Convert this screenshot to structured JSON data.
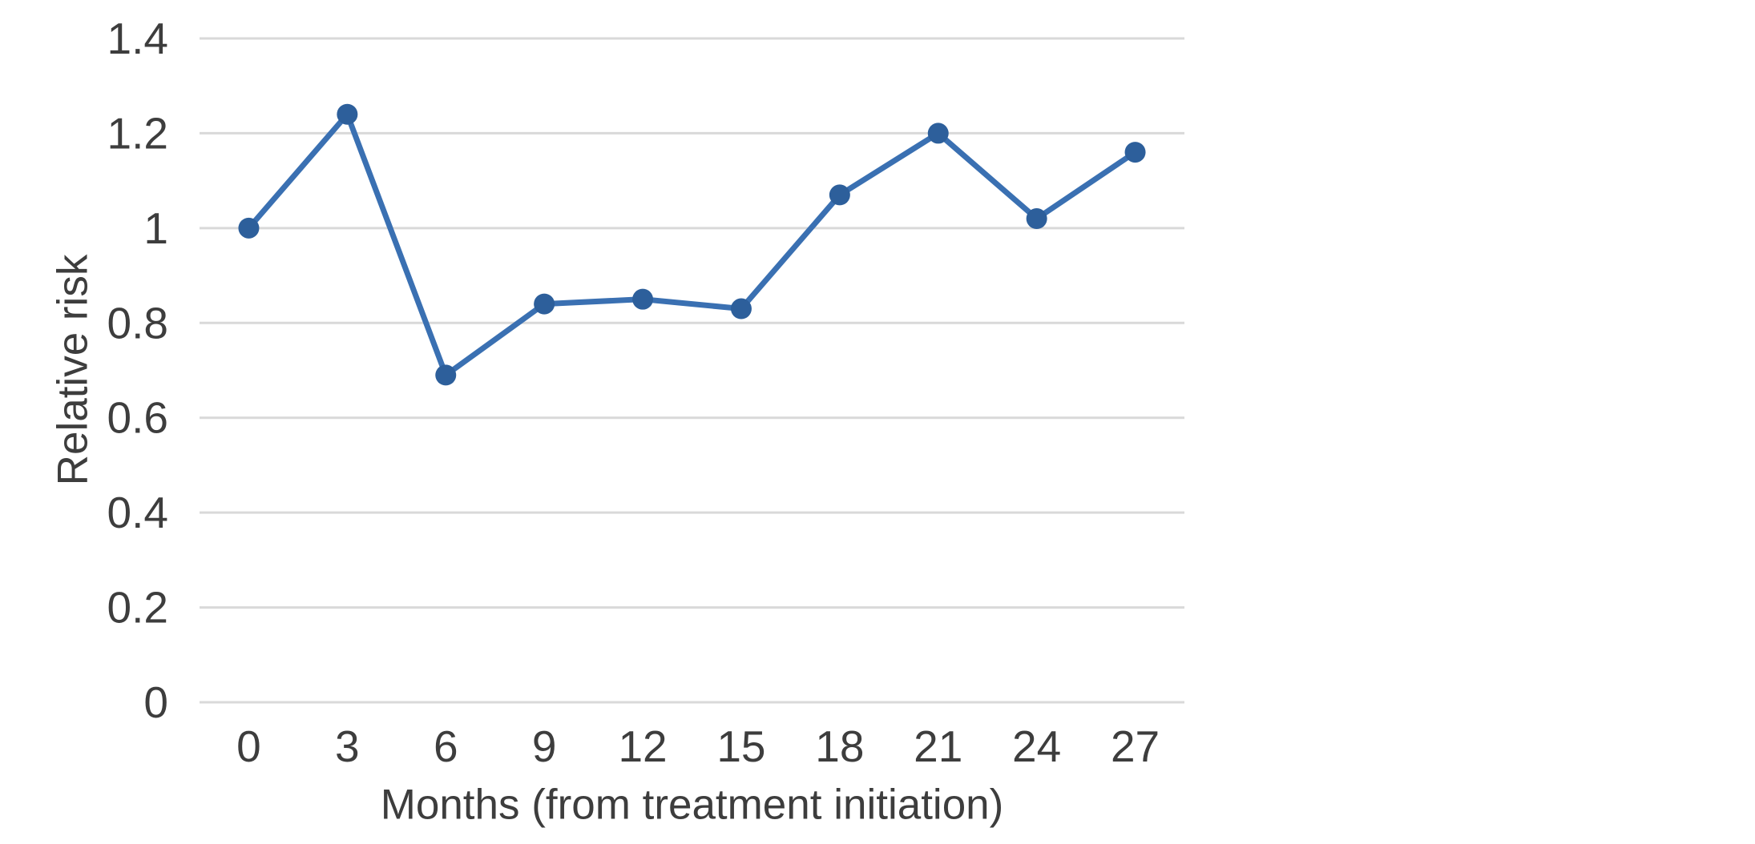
{
  "chart_data": {
    "type": "line",
    "title": "",
    "xlabel": "Months (from treatment initiation)",
    "ylabel": "Relative risk",
    "categories": [
      0,
      3,
      6,
      9,
      12,
      15,
      18,
      21,
      24,
      27
    ],
    "x_tick_labels": [
      "0",
      "3",
      "6",
      "9",
      "12",
      "15",
      "18",
      "21",
      "24",
      "27"
    ],
    "series": [
      {
        "name": "Relative risk",
        "values": [
          1.0,
          1.24,
          0.69,
          0.84,
          0.85,
          0.83,
          1.07,
          1.2,
          1.02,
          1.16
        ]
      }
    ],
    "ylim": [
      0,
      1.4
    ],
    "y_ticks": [
      "0",
      "0.2",
      "0.4",
      "0.6",
      "0.8",
      "1",
      "1.2",
      "1.4"
    ],
    "y_tick_values": [
      0,
      0.2,
      0.4,
      0.6,
      0.8,
      1,
      1.2,
      1.4
    ],
    "grid": "horizontal-only",
    "legend": "none",
    "colors": {
      "line": "#3a70b2",
      "marker": "#2d5f9b",
      "gridline": "#d9d9d9",
      "text": "#3d3d3d",
      "background": "#ffffff"
    }
  }
}
